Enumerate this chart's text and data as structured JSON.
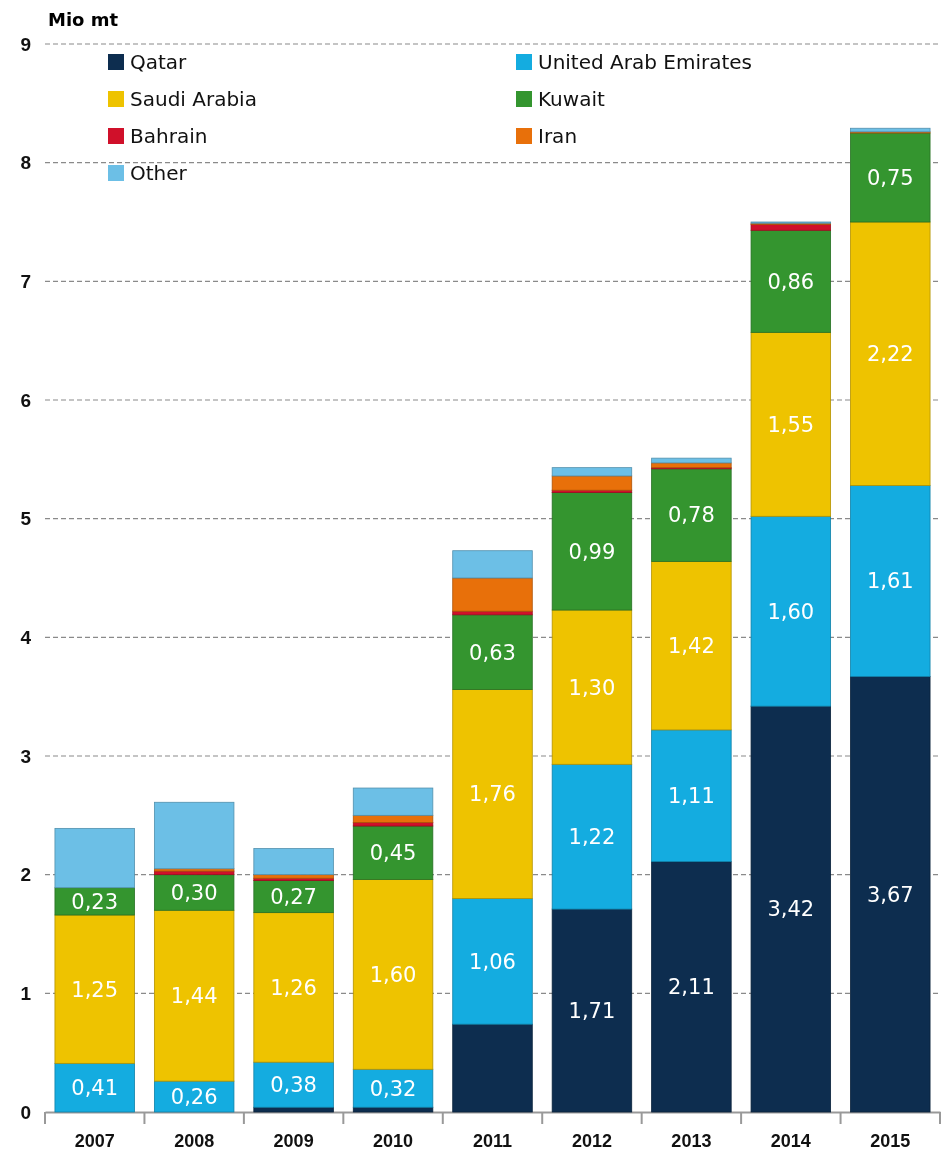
{
  "chart_data": {
    "type": "bar",
    "stacked": true,
    "ylabel": "Mio mt",
    "categories": [
      "2007",
      "2008",
      "2009",
      "2010",
      "2011",
      "2012",
      "2013",
      "2014",
      "2015"
    ],
    "ylim": [
      0,
      9
    ],
    "yticks": [
      0,
      1,
      2,
      3,
      4,
      5,
      6,
      7,
      8,
      9
    ],
    "grid": "y",
    "legend": "top left",
    "series": [
      {
        "name": "Qatar",
        "color": "#0d2d4f",
        "values": [
          0,
          0,
          0.04,
          0.04,
          0.74,
          1.71,
          2.11,
          3.42,
          3.67
        ],
        "value_labels": [
          null,
          null,
          null,
          null,
          null,
          "1,71",
          "2,11",
          "3,42",
          "3,67"
        ]
      },
      {
        "name": "United Arab Emirates",
        "color": "#14ace0",
        "values": [
          0.41,
          0.26,
          0.38,
          0.32,
          1.06,
          1.22,
          1.11,
          1.6,
          1.61
        ],
        "value_labels": [
          "0,41",
          "0,26",
          "0,38",
          "0,32",
          "1,06",
          "1,22",
          "1,11",
          "1,60",
          "1,61"
        ]
      },
      {
        "name": "Saudi Arabia",
        "color": "#eec300",
        "values": [
          1.25,
          1.44,
          1.26,
          1.6,
          1.76,
          1.3,
          1.42,
          1.55,
          2.22
        ],
        "value_labels": [
          "1,25",
          "1,44",
          "1,26",
          "1,60",
          "1,76",
          "1,30",
          "1,42",
          "1,55",
          "2,22"
        ]
      },
      {
        "name": "Kuwait",
        "color": "#34952f",
        "values": [
          0.23,
          0.3,
          0.27,
          0.45,
          0.63,
          0.99,
          0.78,
          0.86,
          0.75
        ],
        "value_labels": [
          "0,23",
          "0,30",
          "0,27",
          "0,45",
          "0,63",
          "0,99",
          "0,78",
          "0,86",
          "0,75"
        ]
      },
      {
        "name": "Bahrain",
        "color": "#d0102a",
        "values": [
          0,
          0.03,
          0.02,
          0.03,
          0.03,
          0.02,
          0.01,
          0.05,
          0
        ]
      },
      {
        "name": "Iran",
        "color": "#e8700a",
        "values": [
          0,
          0.02,
          0.03,
          0.06,
          0.28,
          0.12,
          0.04,
          0.01,
          0.01
        ]
      },
      {
        "name": "Other",
        "color": "#6cbfe6",
        "values": [
          0.5,
          0.56,
          0.22,
          0.23,
          0.23,
          0.07,
          0.04,
          0.01,
          0.03
        ]
      }
    ]
  }
}
